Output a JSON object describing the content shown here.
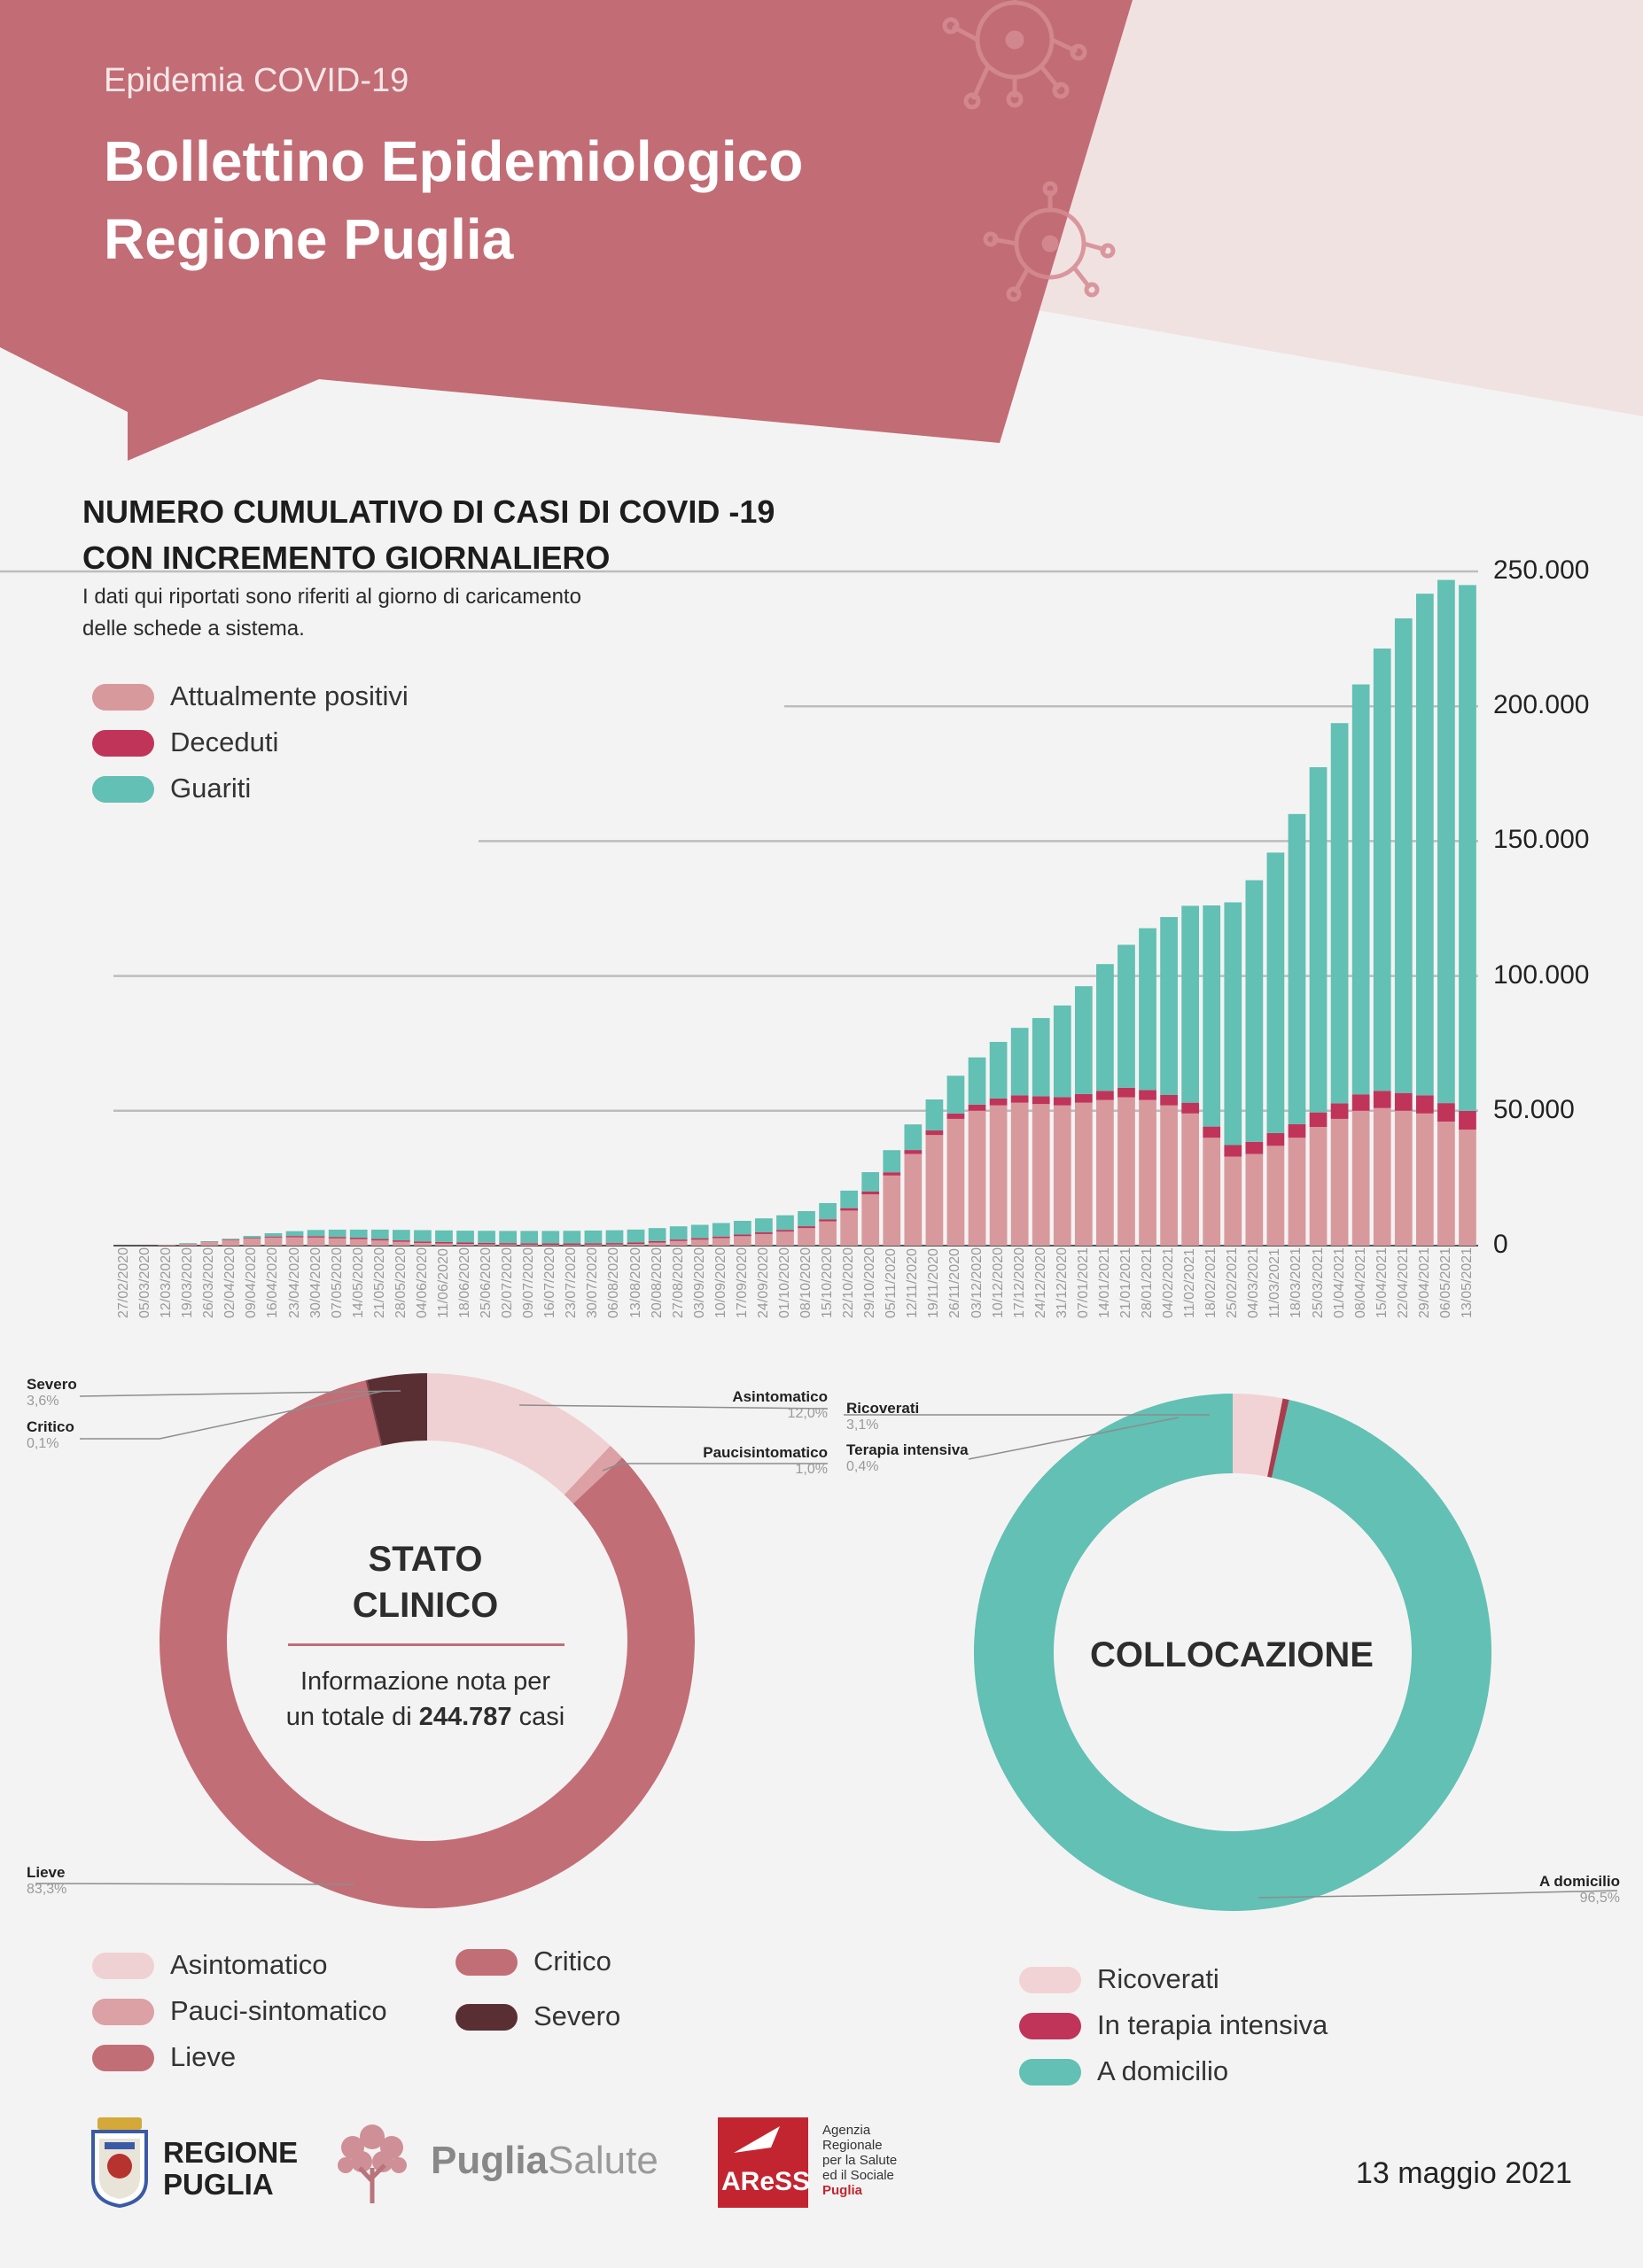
{
  "header": {
    "subtitle": "Epidemia COVID-19",
    "title_line1": "Bollettino Epidemiologico",
    "title_line2": "Regione Puglia"
  },
  "cumulative": {
    "title_line1": "NUMERO CUMULATIVO DI CASI DI COVID -19",
    "title_line2": "CON INCREMENTO GIORNALIERO",
    "note_line1": "I dati qui riportati sono riferiti al giorno di caricamento",
    "note_line2": "delle schede a sistema.",
    "legend": [
      {
        "label": "Attualmente positivi",
        "color": "#d8999d"
      },
      {
        "label": "Deceduti",
        "color": "#c0345a"
      },
      {
        "label": "Guariti",
        "color": "#62c0b4"
      }
    ]
  },
  "stato_clinico": {
    "title_line1": "STATO",
    "title_line2": "CLINICO",
    "text_prefix": "Informazione nota per",
    "text_mid": "un totale di ",
    "total": "244.787",
    "text_suffix": " casi",
    "annotations": [
      {
        "name": "Severo",
        "value": "3,6%"
      },
      {
        "name": "Critico",
        "value": "0,1%"
      },
      {
        "name": "Asintomatico",
        "value": "12,0%"
      },
      {
        "name": "Paucisintomatico",
        "value": "1,0%"
      },
      {
        "name": "Lieve",
        "value": "83,3%"
      }
    ],
    "legend": [
      {
        "label": "Asintomatico",
        "color": "#f0d1d3"
      },
      {
        "label": "Pauci-sintomatico",
        "color": "#dba1a5"
      },
      {
        "label": "Lieve",
        "color": "#c26e77"
      },
      {
        "label": "Critico",
        "color": "#c26e77"
      },
      {
        "label": "Severo",
        "color": "#5a2f33"
      }
    ]
  },
  "collocazione": {
    "title": "COLLOCAZIONE",
    "annotations": [
      {
        "name": "Ricoverati",
        "value": "3,1%"
      },
      {
        "name": "Terapia intensiva",
        "value": "0,4%"
      },
      {
        "name": "A domicilio",
        "value": "96,5%"
      }
    ],
    "legend": [
      {
        "label": "Ricoverati",
        "color": "#f2d3d5"
      },
      {
        "label": "In terapia intensiva",
        "color": "#c0345a"
      },
      {
        "label": "A domicilio",
        "color": "#62c0b4"
      }
    ]
  },
  "footer": {
    "regione_line1": "REGIONE",
    "regione_line2": "PUGLIA",
    "puglia": "Puglia",
    "salute": "Salute",
    "aress": "AReSS",
    "agenzia_lines": [
      "Agenzia",
      "Regionale",
      "per la Salute",
      "ed il Sociale"
    ],
    "agenzia_puglia": "Puglia",
    "date": "13 maggio 2021"
  },
  "chart_data": [
    {
      "type": "bar",
      "stacked": true,
      "title": "NUMERO CUMULATIVO DI CASI DI COVID -19 CON INCREMENTO GIORNALIERO",
      "x_axis": "date (daily)",
      "ylim": [
        0,
        250000
      ],
      "yticks": [
        0,
        50000,
        100000,
        150000,
        200000,
        250000
      ],
      "ytick_labels": [
        "0",
        "50.000",
        "100.000",
        "150.000",
        "200.000",
        "250.000"
      ],
      "grid": true,
      "legend_position": "top-left",
      "xtick_labels": [
        "27/02/2020",
        "05/03/2020",
        "12/03/2020",
        "19/03/2020",
        "26/03/2020",
        "02/04/2020",
        "09/04/2020",
        "16/04/2020",
        "23/04/2020",
        "30/04/2020",
        "07/05/2020",
        "14/05/2020",
        "21/05/2020",
        "28/05/2020",
        "04/06/2020",
        "11/06/2020",
        "18/06/2020",
        "25/06/2020",
        "02/07/2020",
        "09/07/2020",
        "16/07/2020",
        "23/07/2020",
        "30/07/2020",
        "06/08/2020",
        "13/08/2020",
        "20/08/2020",
        "27/08/2020",
        "03/09/2020",
        "10/09/2020",
        "17/09/2020",
        "24/09/2020",
        "01/10/2020",
        "08/10/2020",
        "15/10/2020",
        "22/10/2020",
        "29/10/2020",
        "05/11/2020",
        "12/11/2020",
        "19/11/2020",
        "26/11/2020",
        "03/12/2020",
        "10/12/2020",
        "17/12/2020",
        "24/12/2020",
        "31/12/2020",
        "07/01/2021",
        "14/01/2021",
        "21/01/2021",
        "28/01/2021",
        "04/02/2021",
        "11/02/2021",
        "18/02/2021",
        "25/02/2021",
        "04/03/2021",
        "11/03/2021",
        "18/03/2021",
        "25/03/2021",
        "01/04/2021",
        "08/04/2021",
        "15/04/2021",
        "22/04/2021",
        "29/04/2021",
        "06/05/2021",
        "13/05/2021"
      ],
      "series": [
        {
          "name": "Attualmente positivi",
          "color": "#d8999d",
          "values": [
            0,
            0,
            50,
            600,
            1300,
            2100,
            2600,
            3000,
            3100,
            3000,
            2700,
            2400,
            1900,
            1400,
            1000,
            800,
            600,
            500,
            400,
            350,
            300,
            300,
            350,
            400,
            600,
            1100,
            1700,
            2200,
            2800,
            3500,
            4300,
            5200,
            6500,
            9000,
            13000,
            19000,
            26000,
            34000,
            41000,
            47000,
            50000,
            52000,
            53000,
            52500,
            52000,
            53000,
            54000,
            55000,
            54000,
            52000,
            49000,
            40000,
            33000,
            34000,
            37000,
            40000,
            44000,
            47000,
            50000,
            51000,
            50000,
            49000,
            46000,
            43000
          ]
        },
        {
          "name": "Deceduti",
          "color": "#c0345a",
          "values": [
            0,
            0,
            0,
            10,
            60,
            180,
            300,
            400,
            470,
            510,
            530,
            540,
            545,
            545,
            548,
            550,
            550,
            550,
            550,
            550,
            552,
            553,
            555,
            558,
            560,
            562,
            565,
            570,
            580,
            600,
            620,
            650,
            700,
            780,
            900,
            1050,
            1200,
            1450,
            1700,
            2000,
            2300,
            2550,
            2750,
            2900,
            3050,
            3200,
            3400,
            3550,
            3700,
            3850,
            4000,
            4150,
            4300,
            4500,
            4750,
            5050,
            5400,
            5750,
            6100,
            6400,
            6600,
            6750,
            6850,
            6950
          ]
        },
        {
          "name": "Guariti",
          "color": "#62c0b4",
          "values": [
            0,
            0,
            0,
            20,
            100,
            300,
            700,
            1200,
            1800,
            2300,
            2700,
            3000,
            3500,
            3900,
            4200,
            4300,
            4400,
            4450,
            4500,
            4550,
            4600,
            4650,
            4700,
            4750,
            4800,
            4850,
            4900,
            4950,
            5000,
            5100,
            5200,
            5400,
            5600,
            6000,
            6500,
            7200,
            8200,
            9500,
            11500,
            14000,
            17500,
            21000,
            25000,
            29000,
            34000,
            40000,
            47000,
            53000,
            60000,
            66000,
            73000,
            82000,
            90000,
            97000,
            104000,
            115000,
            128000,
            141000,
            152000,
            164000,
            176000,
            186000,
            194000,
            195000
          ]
        }
      ]
    },
    {
      "type": "pie",
      "donut": true,
      "title": "STATO CLINICO",
      "categories": [
        "Asintomatico",
        "Paucisintomatico",
        "Lieve",
        "Critico",
        "Severo"
      ],
      "values": [
        12.0,
        1.0,
        83.3,
        0.1,
        3.6
      ],
      "colors": [
        "#f0d1d3",
        "#dba1a5",
        "#c26e77",
        "#7e4046",
        "#5a2f33"
      ]
    },
    {
      "type": "pie",
      "donut": true,
      "title": "COLLOCAZIONE",
      "categories": [
        "Ricoverati",
        "Terapia intensiva",
        "A domicilio"
      ],
      "values": [
        3.1,
        0.4,
        96.5
      ],
      "colors": [
        "#f2d3d5",
        "#a83e4d",
        "#62c0b4"
      ]
    }
  ]
}
